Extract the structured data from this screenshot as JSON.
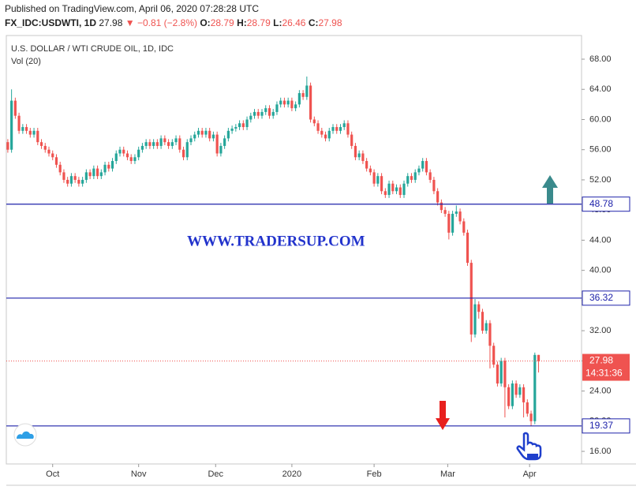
{
  "chart_data": {
    "type": "candlestick",
    "published": "Published on TradingView.com, April 06, 2020 07:28:28 UTC",
    "symbol": "FX_IDC:USDWTI, 1D",
    "change": "▼ −0.81 (−2.8%)",
    "ohlc_labels": [
      "O:",
      "H:",
      "L:",
      "C:"
    ],
    "title": "U.S. DOLLAR / WTI CRUDE OIL, 1D, IDC",
    "indicator": "Vol (20)",
    "watermark": "WWW.TRADERSUP.COM",
    "countdown": "14:31:36",
    "up_color": "#26a69a",
    "down_color": "#ef5350",
    "grid": false,
    "ylim": [
      14.33,
      71.14
    ],
    "yticks": [
      {
        "value": 16,
        "label": "16.00"
      },
      {
        "value": 20,
        "label": "20.00"
      },
      {
        "value": 24,
        "label": "24.00"
      },
      {
        "value": 28,
        "label": "28.00"
      },
      {
        "value": 32,
        "label": "32.00"
      },
      {
        "value": 36,
        "label": "36.00"
      },
      {
        "value": 40,
        "label": "40.00"
      },
      {
        "value": 44,
        "label": "44.00"
      },
      {
        "value": 48,
        "label": "48.00"
      },
      {
        "value": 52,
        "label": "52.00"
      },
      {
        "value": 56,
        "label": "56.00"
      },
      {
        "value": 60,
        "label": "60.00"
      },
      {
        "value": 64,
        "label": "64.00"
      },
      {
        "value": 68,
        "label": "68.00"
      }
    ],
    "xlim": [
      -0.4,
      153.5
    ],
    "xticks": [
      {
        "value": 12,
        "label": "Oct"
      },
      {
        "value": 35,
        "label": "Nov"
      },
      {
        "value": 55.6,
        "label": "Dec"
      },
      {
        "value": 76,
        "label": "2020"
      },
      {
        "value": 98,
        "label": "Feb"
      },
      {
        "value": 117.7,
        "label": "Mar"
      },
      {
        "value": 139.6,
        "label": "Apr"
      }
    ],
    "hlines": [
      {
        "value": 48.78,
        "color": "#1e22aa"
      },
      {
        "value": 36.32,
        "color": "#1e22aa"
      },
      {
        "value": 19.37,
        "color": "#1e22aa"
      }
    ],
    "ohlc": [
      [
        57,
        57.4,
        55.6,
        56
      ],
      [
        56,
        64,
        55.6,
        62.5
      ],
      [
        62.5,
        62.9,
        60.1,
        60.5
      ],
      [
        60.5,
        60.9,
        58.1,
        58.5
      ],
      [
        58.5,
        59.4,
        58.1,
        59
      ],
      [
        59,
        59.4,
        58.1,
        58.5
      ],
      [
        58.5,
        58.9,
        57.6,
        58
      ],
      [
        58,
        58.9,
        57.6,
        58.5
      ],
      [
        58.5,
        58.9,
        56.6,
        57
      ],
      [
        57,
        57.4,
        56.1,
        56.5
      ],
      [
        56.5,
        56.9,
        55.6,
        56
      ],
      [
        56,
        56.4,
        55.1,
        55.5
      ],
      [
        55.5,
        55.9,
        54.6,
        55
      ],
      [
        55,
        55.4,
        53.6,
        54
      ],
      [
        54,
        54.4,
        52.6,
        53
      ],
      [
        53,
        53.4,
        51.6,
        52
      ],
      [
        52,
        52.4,
        51.1,
        51.5
      ],
      [
        51.5,
        52.9,
        51.1,
        52.5
      ],
      [
        52.5,
        52.9,
        51.6,
        52
      ],
      [
        52,
        52.4,
        51.1,
        51.5
      ],
      [
        51.5,
        52.4,
        51.1,
        52
      ],
      [
        52,
        53.4,
        51.6,
        53
      ],
      [
        53,
        53.4,
        52.1,
        52.5
      ],
      [
        52.5,
        53.9,
        52.1,
        53.5
      ],
      [
        53.5,
        53.9,
        52.1,
        52.5
      ],
      [
        52.5,
        53.4,
        52.1,
        53
      ],
      [
        53,
        54.4,
        52.6,
        54
      ],
      [
        54,
        54.4,
        53.1,
        53.5
      ],
      [
        53.5,
        54.9,
        53.1,
        54.5
      ],
      [
        54.5,
        55.9,
        54.1,
        55.5
      ],
      [
        55.5,
        56.4,
        55.1,
        56
      ],
      [
        56,
        56.4,
        55.1,
        55.5
      ],
      [
        55.5,
        55.9,
        54.6,
        55
      ],
      [
        55,
        55.4,
        54.1,
        54.5
      ],
      [
        54.5,
        55.4,
        54.1,
        55
      ],
      [
        55,
        56.4,
        54.6,
        56
      ],
      [
        56,
        56.9,
        55.6,
        56.5
      ],
      [
        56.5,
        57.4,
        56.1,
        57
      ],
      [
        57,
        57.4,
        56.1,
        56.5
      ],
      [
        56.5,
        57.4,
        56.1,
        57
      ],
      [
        57,
        57.4,
        56.1,
        56.5
      ],
      [
        56.5,
        57.9,
        56.1,
        57.5
      ],
      [
        57.5,
        57.9,
        56.6,
        57
      ],
      [
        57,
        57.4,
        56.1,
        56.5
      ],
      [
        56.5,
        57.4,
        56.1,
        57
      ],
      [
        57,
        57.9,
        56.6,
        57.5
      ],
      [
        57.5,
        57.9,
        55.6,
        56
      ],
      [
        56,
        56.4,
        54.6,
        55
      ],
      [
        55,
        57.4,
        54.6,
        57
      ],
      [
        57,
        57.9,
        56.6,
        57.5
      ],
      [
        57.5,
        58.4,
        57.1,
        58
      ],
      [
        58,
        58.9,
        57.6,
        58.5
      ],
      [
        58.5,
        58.9,
        57.6,
        58
      ],
      [
        58,
        58.9,
        57.6,
        58.5
      ],
      [
        58.5,
        58.9,
        57.1,
        57.5
      ],
      [
        57.5,
        58.4,
        57.1,
        58
      ],
      [
        58,
        58.4,
        55.1,
        55.5
      ],
      [
        55.5,
        56.9,
        55.1,
        56.5
      ],
      [
        56.5,
        57.9,
        56.1,
        57.5
      ],
      [
        57.5,
        58.9,
        57.1,
        58.5
      ],
      [
        58.5,
        59.2,
        58.1,
        58.8
      ],
      [
        58.8,
        59.4,
        58.4,
        59
      ],
      [
        59,
        59.9,
        58.6,
        59.5
      ],
      [
        59.5,
        59.9,
        58.6,
        59
      ],
      [
        59,
        60.4,
        58.6,
        60
      ],
      [
        60,
        60.9,
        59.6,
        60.5
      ],
      [
        60.5,
        61.4,
        60.1,
        61
      ],
      [
        61,
        61.4,
        60.1,
        60.5
      ],
      [
        60.5,
        61.4,
        60.1,
        61
      ],
      [
        61,
        61.9,
        60.6,
        61.5
      ],
      [
        61.5,
        61.9,
        60.1,
        60.5
      ],
      [
        60.5,
        61.4,
        60.1,
        61
      ],
      [
        61,
        62.4,
        60.6,
        62
      ],
      [
        62,
        62.9,
        61.6,
        62.5
      ],
      [
        62.5,
        62.9,
        61.6,
        62
      ],
      [
        62,
        62.9,
        61.6,
        62.5
      ],
      [
        62.5,
        62.9,
        61.1,
        61.5
      ],
      [
        61.5,
        62.4,
        61.1,
        62
      ],
      [
        62,
        63.9,
        61.6,
        63.5
      ],
      [
        63.5,
        63.9,
        62.6,
        63
      ],
      [
        63,
        65.7,
        62.6,
        64.5
      ],
      [
        64.5,
        64.9,
        59.6,
        60
      ],
      [
        60,
        60.4,
        59.1,
        59.5
      ],
      [
        59.5,
        59.9,
        58.1,
        58.5
      ],
      [
        58.5,
        58.9,
        57.6,
        58
      ],
      [
        58,
        58.4,
        57.1,
        57.5
      ],
      [
        57.5,
        58.9,
        57.1,
        58.5
      ],
      [
        58.5,
        59.4,
        58.1,
        59
      ],
      [
        59,
        59.4,
        58.1,
        58.5
      ],
      [
        58.5,
        59.4,
        58.1,
        59
      ],
      [
        59,
        59.9,
        58.6,
        59.5
      ],
      [
        59.5,
        59.9,
        57.6,
        58
      ],
      [
        58,
        58.4,
        56.1,
        56.5
      ],
      [
        56.5,
        56.9,
        54.6,
        55
      ],
      [
        55,
        55.9,
        54.6,
        55.5
      ],
      [
        55.5,
        55.9,
        54.1,
        54.5
      ],
      [
        54.5,
        54.9,
        53.1,
        53.5
      ],
      [
        53.5,
        53.9,
        52.6,
        53
      ],
      [
        53,
        53.4,
        51.1,
        51.5
      ],
      [
        51.5,
        52.9,
        51.1,
        52.5
      ],
      [
        52.5,
        52.9,
        50.1,
        50.5
      ],
      [
        50.5,
        50.9,
        49.6,
        50
      ],
      [
        50,
        51.9,
        49.6,
        51.5
      ],
      [
        51.5,
        51.9,
        50.1,
        50.5
      ],
      [
        50.5,
        51.4,
        50.1,
        51
      ],
      [
        51,
        51.4,
        49.6,
        50
      ],
      [
        50,
        51.9,
        49.6,
        51.5
      ],
      [
        51.5,
        52.9,
        51.1,
        52.5
      ],
      [
        52.5,
        52.9,
        51.6,
        52
      ],
      [
        52,
        53.4,
        51.6,
        53
      ],
      [
        53,
        53.9,
        52.6,
        53.5
      ],
      [
        53.5,
        54.9,
        53.1,
        54.5
      ],
      [
        54.5,
        54.9,
        52.6,
        53
      ],
      [
        53,
        53.4,
        51.6,
        52
      ],
      [
        52,
        52.4,
        50.1,
        50.5
      ],
      [
        50.5,
        50.9,
        48.6,
        49
      ],
      [
        49,
        49.4,
        47.6,
        48
      ],
      [
        48,
        48.4,
        47.1,
        47.5
      ],
      [
        47.5,
        47.9,
        44.1,
        45
      ],
      [
        45,
        47.9,
        44.6,
        47.5
      ],
      [
        47.5,
        48.6,
        47.1,
        47.8
      ],
      [
        47.8,
        48.2,
        46.1,
        46.5
      ],
      [
        46.5,
        46.9,
        44.6,
        45
      ],
      [
        45,
        45.4,
        40.6,
        41
      ],
      [
        41,
        41.4,
        30.5,
        31.5
      ],
      [
        31.5,
        36.2,
        31.1,
        35.5
      ],
      [
        35.5,
        35.9,
        33.6,
        34.5
      ],
      [
        34.5,
        34.9,
        31.6,
        32
      ],
      [
        32,
        33.4,
        31.6,
        33
      ],
      [
        33,
        33.4,
        27,
        30
      ],
      [
        30,
        30.4,
        27.1,
        27.5
      ],
      [
        27.5,
        27.9,
        24.6,
        25
      ],
      [
        25,
        28.4,
        24.6,
        28
      ],
      [
        28,
        28.4,
        20.5,
        24.5
      ],
      [
        24.5,
        24.9,
        21.6,
        22
      ],
      [
        22,
        25.4,
        21.6,
        25
      ],
      [
        25,
        25.4,
        23.1,
        23.5
      ],
      [
        23.5,
        24.9,
        23.1,
        24.5
      ],
      [
        24.5,
        24.9,
        20.5,
        22.5
      ],
      [
        22.5,
        22.9,
        20.6,
        21
      ],
      [
        21,
        21.4,
        19.4,
        20
      ],
      [
        20,
        29.1,
        19.6,
        28.79
      ],
      [
        28.79,
        28.79,
        26.46,
        27.98
      ]
    ]
  }
}
